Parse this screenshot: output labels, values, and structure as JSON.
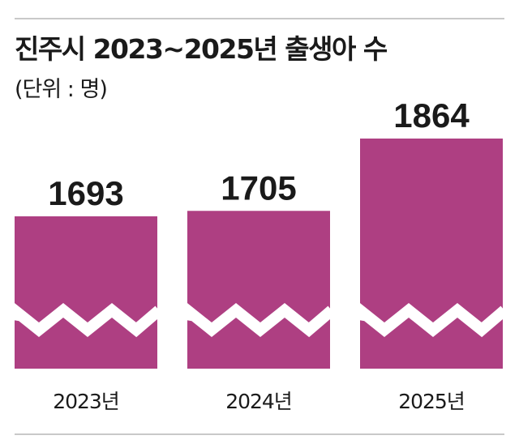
{
  "title": "진주시 2023~2025년 출생아 수",
  "unit_note": "(단위 : 명)",
  "colors": {
    "bar": "#ae3f82",
    "text": "#1a1a1a",
    "break_gap": "#ffffff"
  },
  "chart_data": {
    "type": "bar",
    "title": "진주시 2023~2025년 출생아 수",
    "ylabel": "(단위 : 명)",
    "categories": [
      "2023년",
      "2024년",
      "2025년"
    ],
    "values": [
      1693,
      1705,
      1864
    ],
    "axis_break": true,
    "grid": false,
    "legend": "none"
  }
}
